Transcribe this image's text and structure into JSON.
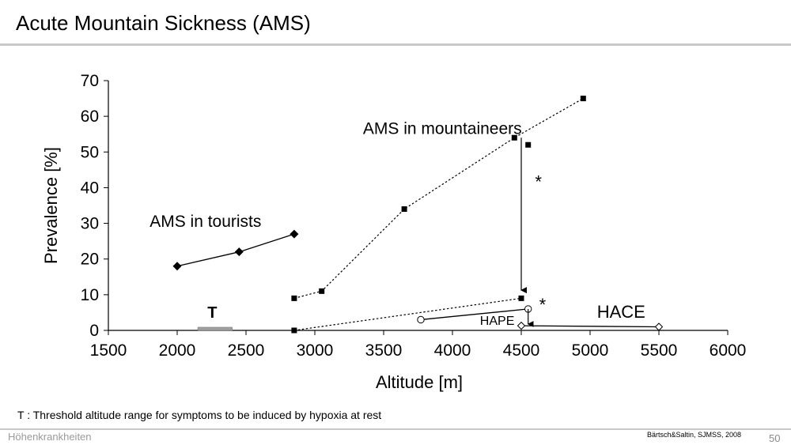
{
  "slide": {
    "title": "Acute Mountain Sickness (AMS)",
    "footnote": "T : Threshold altitude range for symptoms to be induced by hypoxia at rest",
    "footer_left": "Höhenkrankheiten",
    "citation": "Bärtsch&Saltin, SJMSS, 2008",
    "page_number": "50"
  },
  "chart_data": {
    "type": "line",
    "xlabel": "Altitude [m]",
    "ylabel": "Prevalence [%]",
    "xlim": [
      1500,
      6000
    ],
    "ylim": [
      0,
      70
    ],
    "xticks": [
      1500,
      2000,
      2500,
      3000,
      3500,
      4000,
      4500,
      5000,
      5500,
      6000
    ],
    "yticks": [
      0,
      10,
      20,
      30,
      40,
      50,
      60,
      70
    ],
    "grid": false,
    "series": [
      {
        "name": "AMS in tourists",
        "marker": "diamond-filled",
        "line": "solid",
        "x": [
          2000,
          2450,
          2850
        ],
        "y": [
          18,
          22,
          27
        ]
      },
      {
        "name": "AMS in mountaineers",
        "marker": "square-filled",
        "line": "dotted",
        "x": [
          2850,
          3050,
          3650,
          4450,
          4950
        ],
        "y": [
          9,
          11,
          34,
          54,
          65
        ]
      },
      {
        "name": "",
        "marker": "square-filled",
        "line": "none",
        "x": [
          4550
        ],
        "y": [
          52
        ]
      },
      {
        "name": "",
        "marker": "square-filled",
        "line": "dotted",
        "x": [
          2850,
          4500
        ],
        "y": [
          0,
          9
        ]
      },
      {
        "name": "HAPE",
        "marker": "circle-open",
        "line": "solid",
        "x": [
          3770,
          4550
        ],
        "y": [
          3,
          6
        ]
      },
      {
        "name": "HACE",
        "marker": "diamond-open",
        "line": "solid",
        "x": [
          4500,
          5500
        ],
        "y": [
          1.3,
          1
        ]
      }
    ],
    "annotations": [
      {
        "text": "AMS in mountaineers",
        "x": 3350,
        "y": 55
      },
      {
        "text": "AMS in tourists",
        "x": 1800,
        "y": 29
      },
      {
        "text": "HAPE",
        "x": 4200,
        "y": 1.5
      },
      {
        "text": "HACE",
        "x": 5050,
        "y": 3.5
      },
      {
        "text": "*",
        "x": 4600,
        "y": 40
      },
      {
        "text": "*",
        "x": 4630,
        "y": 5.5
      },
      {
        "text": "T",
        "x": 2220,
        "y": 3.5
      }
    ],
    "arrows": [
      {
        "x": 4500,
        "from": 54,
        "to": 9.5
      },
      {
        "x": 4550,
        "from": 6,
        "to": 0
      }
    ],
    "threshold_range": {
      "label": "T",
      "from": 2150,
      "to": 2400
    }
  }
}
